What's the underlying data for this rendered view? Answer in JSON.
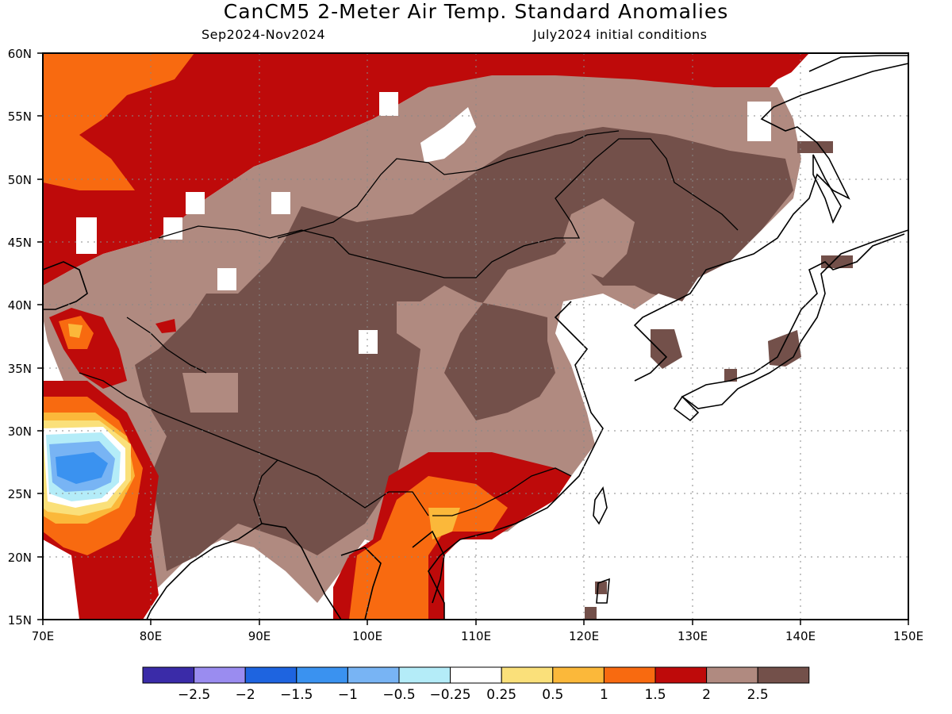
{
  "header": {
    "title": "CanCM5 2-Meter Air Temp. Standard Anomalies",
    "period": "Sep2024-Nov2024",
    "init": "July2024 initial conditions"
  },
  "axes": {
    "lon_labels": [
      "70E",
      "80E",
      "90E",
      "100E",
      "110E",
      "120E",
      "130E",
      "140E",
      "150E"
    ],
    "lat_labels": [
      "60N",
      "55N",
      "50N",
      "45N",
      "40N",
      "35N",
      "30N",
      "25N",
      "20N",
      "15N"
    ],
    "lon_range": [
      70,
      150
    ],
    "lat_range": [
      15,
      60
    ],
    "grid": "dotted"
  },
  "colorbar": {
    "colors": [
      "#3a2ba8",
      "#9a8cf0",
      "#1e64e0",
      "#3a92f0",
      "#78b4f4",
      "#b4ecf8",
      "#ffffff",
      "#fae07a",
      "#fbb83a",
      "#f86a10",
      "#be0a0a",
      "#b08a80",
      "#73504a"
    ],
    "labels": [
      "−2.5",
      "−2",
      "−1.5",
      "−1",
      "−0.5",
      "−0.25",
      "0.25",
      "0.5",
      "1",
      "1.5",
      "2",
      "2.5"
    ]
  }
}
